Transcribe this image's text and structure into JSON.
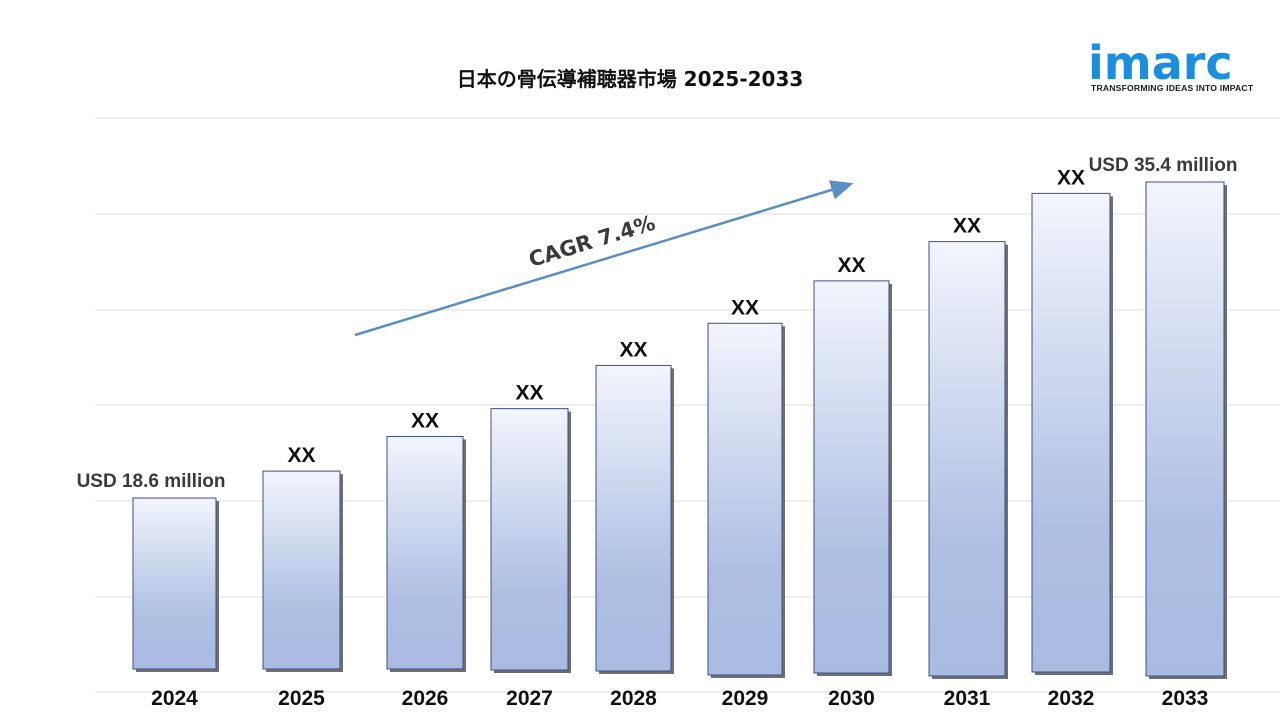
{
  "brand": {
    "name": "imarc",
    "tagline": "TRANSFORMING IDEAS INTO IMPACT",
    "color": "#1a8fe0"
  },
  "chart_data": {
    "type": "bar",
    "title": "日本の骨伝導補聴器市場 2025-2033",
    "categories": [
      "2024",
      "2025",
      "2026",
      "2027",
      "2028",
      "2029",
      "2030",
      "2031",
      "2032",
      "2033"
    ],
    "values": [
      18.6,
      20.0,
      21.8,
      23.3,
      25.6,
      28.0,
      30.1,
      32.3,
      34.6,
      35.4
    ],
    "value_labels": [
      "USD 18.6 million",
      "XX",
      "XX",
      "XX",
      "XX",
      "XX",
      "XX",
      "XX",
      "XX",
      "USD 35.4 million"
    ],
    "unit": "USD million",
    "cagr_label": "CAGR 7.4%",
    "grid": true,
    "bar_gradient": [
      "#f2f5fc",
      "#a4b7e0"
    ]
  }
}
